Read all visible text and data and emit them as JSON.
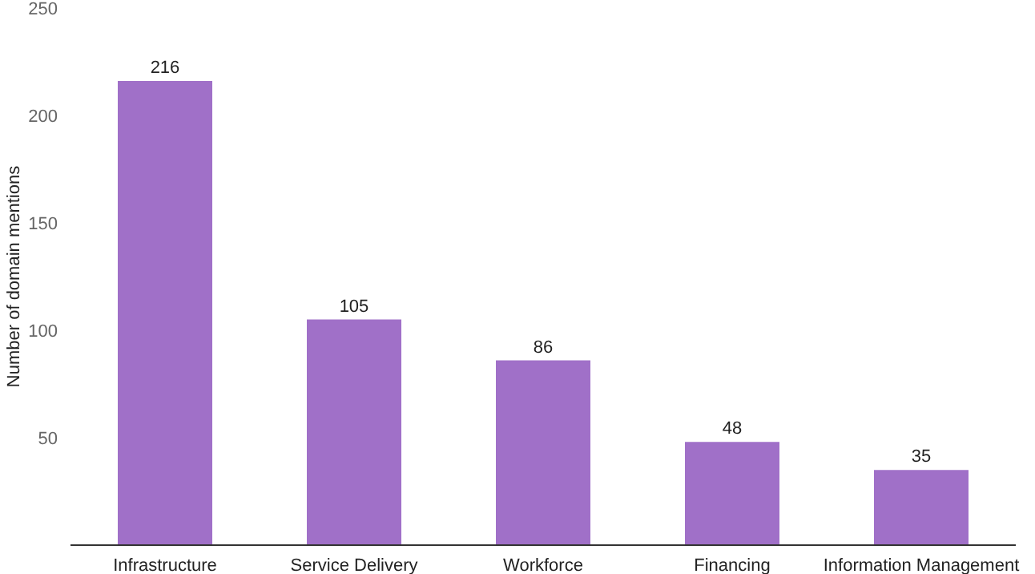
{
  "chart_data": {
    "type": "bar",
    "ylabel": "Number of domain mentions",
    "categories": [
      "Infrastructure",
      "Service Delivery",
      "Workforce",
      "Financing",
      "Information Management"
    ],
    "values": [
      216,
      105,
      86,
      48,
      35
    ],
    "color": "#a070c8",
    "ylim": [
      0,
      250
    ],
    "yticks": [
      50,
      100,
      150,
      200,
      250
    ],
    "data_labels": true
  }
}
